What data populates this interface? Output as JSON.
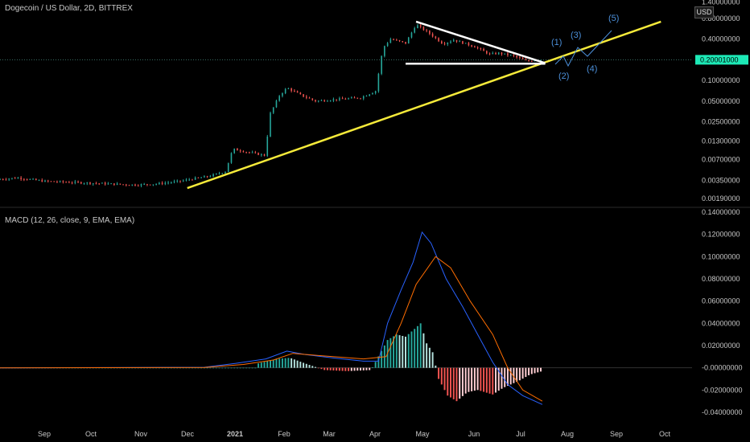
{
  "title": "Dogecoin / US Dollar, 2D, BITTREX",
  "macd_label": "MACD (12, 26, close, 9, EMA, EMA)",
  "price_unit": "USD",
  "last_price_label": "0.20001000",
  "colors": {
    "background": "#000000",
    "bull": "#26a69a",
    "bear": "#ef5350",
    "trendline": "#f5ea3a",
    "pattern": "#ffffff",
    "wave": "#4b8fd9",
    "macd_line": "#2962ff",
    "signal_line": "#ff6d00",
    "hist_pos": "#26a69a",
    "hist_pos_light": "#b2dfdb",
    "hist_neg": "#ef5350",
    "hist_neg_light": "#ffcdd2",
    "price_badge": "#1de9b6"
  },
  "chart_data": [
    {
      "type": "candlestick",
      "title": "Dogecoin / US Dollar, 2D, BITTREX",
      "scale": "log",
      "y_axis_ticks": [
        "1.40000000",
        "0.80000000",
        "0.40000000",
        "0.20001000",
        "0.10000000",
        "0.05000000",
        "0.02500000",
        "0.01300000",
        "0.00700000",
        "0.00350000",
        "0.00190000"
      ],
      "y_axis_tick_values": [
        1.4,
        0.8,
        0.4,
        0.1,
        0.05,
        0.025,
        0.013,
        0.007,
        0.0035,
        0.0019
      ],
      "x_axis_ticks": [
        "Sep",
        "Oct",
        "Nov",
        "Dec",
        "2021",
        "Feb",
        "Mar",
        "Apr",
        "May",
        "Jun",
        "Jul",
        "Aug",
        "Sep",
        "Oct"
      ],
      "last_price": 0.20001,
      "price_path": [
        [
          "2020-08-01",
          0.0036
        ],
        [
          "2020-08-15",
          0.0038
        ],
        [
          "2020-09-01",
          0.0034
        ],
        [
          "2020-09-15",
          0.0033
        ],
        [
          "2020-10-01",
          0.0032
        ],
        [
          "2020-10-15",
          0.0031
        ],
        [
          "2020-11-01",
          0.003
        ],
        [
          "2020-11-15",
          0.0031
        ],
        [
          "2020-12-01",
          0.0034
        ],
        [
          "2020-12-10",
          0.0037
        ],
        [
          "2020-12-20",
          0.004
        ],
        [
          "2020-12-31",
          0.0047
        ],
        [
          "2021-01-05",
          0.01
        ],
        [
          "2021-01-15",
          0.009
        ],
        [
          "2021-01-27",
          0.008
        ],
        [
          "2021-01-29",
          0.03
        ],
        [
          "2021-02-05",
          0.06
        ],
        [
          "2021-02-10",
          0.078
        ],
        [
          "2021-02-20",
          0.06
        ],
        [
          "2021-03-01",
          0.05
        ],
        [
          "2021-03-15",
          0.053
        ],
        [
          "2021-03-31",
          0.056
        ],
        [
          "2021-04-10",
          0.07
        ],
        [
          "2021-04-15",
          0.3
        ],
        [
          "2021-04-20",
          0.4
        ],
        [
          "2021-04-30",
          0.35
        ],
        [
          "2021-05-07",
          0.65
        ],
        [
          "2021-05-15",
          0.5
        ],
        [
          "2021-05-25",
          0.34
        ],
        [
          "2021-06-01",
          0.39
        ],
        [
          "2021-06-15",
          0.31
        ],
        [
          "2021-06-25",
          0.24
        ],
        [
          "2021-07-01",
          0.25
        ],
        [
          "2021-07-10",
          0.23
        ],
        [
          "2021-07-20",
          0.19
        ],
        [
          "2021-07-26",
          0.2
        ]
      ],
      "trendline": [
        [
          "2020-12-01",
          0.003
        ],
        [
          "2021-10-15",
          0.72
        ]
      ],
      "triangle_upper": [
        [
          "2021-05-05",
          0.72
        ],
        [
          "2021-07-30",
          0.21
        ]
      ],
      "triangle_lower": [
        [
          "2021-04-28",
          0.19
        ],
        [
          "2021-07-30",
          0.19
        ]
      ],
      "wave_labels": [
        "(1)",
        "(2)",
        "(3)",
        "(4)",
        "(5)"
      ]
    },
    {
      "type": "line",
      "title": "MACD (12, 26, close, 9, EMA, EMA)",
      "y_axis_ticks": [
        "0.14000000",
        "0.12000000",
        "0.10000000",
        "0.08000000",
        "0.06000000",
        "0.04000000",
        "0.02000000",
        "-0.00000000",
        "-0.02000000",
        "-0.04000000"
      ],
      "ylim": [
        -0.045,
        0.14
      ],
      "series": [
        {
          "name": "MACD",
          "points": [
            [
              "2020-08-01",
              0.0
            ],
            [
              "2020-12-15",
              0.0005
            ],
            [
              "2021-01-05",
              0.004
            ],
            [
              "2021-01-25",
              0.008
            ],
            [
              "2021-02-08",
              0.015
            ],
            [
              "2021-02-20",
              0.012
            ],
            [
              "2021-03-10",
              0.009
            ],
            [
              "2021-03-31",
              0.006
            ],
            [
              "2021-04-10",
              0.006
            ],
            [
              "2021-04-16",
              0.04
            ],
            [
              "2021-04-25",
              0.07
            ],
            [
              "2021-05-03",
              0.095
            ],
            [
              "2021-05-09",
              0.122
            ],
            [
              "2021-05-15",
              0.112
            ],
            [
              "2021-05-25",
              0.08
            ],
            [
              "2021-06-05",
              0.055
            ],
            [
              "2021-06-15",
              0.03
            ],
            [
              "2021-06-25",
              0.005
            ],
            [
              "2021-07-05",
              -0.015
            ],
            [
              "2021-07-15",
              -0.025
            ],
            [
              "2021-07-28",
              -0.033
            ]
          ]
        },
        {
          "name": "Signal",
          "points": [
            [
              "2020-08-01",
              0.0
            ],
            [
              "2020-12-15",
              0.0003
            ],
            [
              "2021-01-10",
              0.003
            ],
            [
              "2021-01-30",
              0.007
            ],
            [
              "2021-02-12",
              0.013
            ],
            [
              "2021-03-01",
              0.011
            ],
            [
              "2021-03-31",
              0.008
            ],
            [
              "2021-04-15",
              0.01
            ],
            [
              "2021-04-25",
              0.04
            ],
            [
              "2021-05-05",
              0.075
            ],
            [
              "2021-05-18",
              0.1
            ],
            [
              "2021-05-28",
              0.09
            ],
            [
              "2021-06-10",
              0.06
            ],
            [
              "2021-06-25",
              0.03
            ],
            [
              "2021-07-05",
              0.0
            ],
            [
              "2021-07-15",
              -0.02
            ],
            [
              "2021-07-28",
              -0.03
            ]
          ]
        }
      ],
      "histogram": [
        [
          "2021-01-20",
          0.004
        ],
        [
          "2021-02-01",
          0.008
        ],
        [
          "2021-02-10",
          0.009
        ],
        [
          "2021-02-20",
          0.004
        ],
        [
          "2021-03-05",
          -0.002
        ],
        [
          "2021-03-20",
          -0.003
        ],
        [
          "2021-04-05",
          -0.002
        ],
        [
          "2021-04-16",
          0.025
        ],
        [
          "2021-04-22",
          0.03
        ],
        [
          "2021-04-28",
          0.028
        ],
        [
          "2021-05-04",
          0.035
        ],
        [
          "2021-05-08",
          0.04
        ],
        [
          "2021-05-12",
          0.022
        ],
        [
          "2021-05-16",
          0.014
        ],
        [
          "2021-05-20",
          -0.01
        ],
        [
          "2021-05-26",
          -0.025
        ],
        [
          "2021-06-01",
          -0.03
        ],
        [
          "2021-06-08",
          -0.022
        ],
        [
          "2021-06-15",
          -0.02
        ],
        [
          "2021-06-25",
          -0.024
        ],
        [
          "2021-07-02",
          -0.018
        ],
        [
          "2021-07-12",
          -0.012
        ],
        [
          "2021-07-20",
          -0.006
        ],
        [
          "2021-07-28",
          -0.003
        ]
      ]
    }
  ]
}
